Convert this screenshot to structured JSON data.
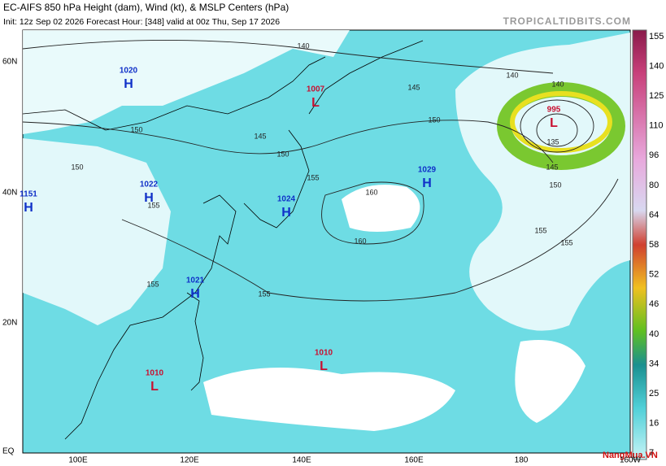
{
  "header": {
    "title": "EC-AIFS 850 hPa Height (dam), Wind (kt), & MSLP Centers (hPa)",
    "subtitle": "Init: 12z Sep 02 2026   Forecast Hour: [348]   valid at 00z Thu, Sep 17 2026",
    "site": "TROPICALTIDBITS.COM"
  },
  "lat_labels": [
    "60N",
    "40N",
    "20N",
    "EQ"
  ],
  "lon_labels": [
    "100E",
    "120E",
    "140E",
    "160E",
    "180",
    "160W"
  ],
  "centers": [
    {
      "type": "H",
      "value": "1020"
    },
    {
      "type": "H",
      "value": "1151"
    },
    {
      "type": "L",
      "value": "1007"
    },
    {
      "type": "L",
      "value": "995"
    },
    {
      "type": "H",
      "value": "1022"
    },
    {
      "type": "H",
      "value": "1024"
    },
    {
      "type": "H",
      "value": "1029"
    },
    {
      "type": "H",
      "value": "1021"
    },
    {
      "type": "L",
      "value": "1010"
    },
    {
      "type": "L",
      "value": "1010"
    }
  ],
  "contour_labels": [
    "140",
    "140",
    "140",
    "150",
    "150",
    "150",
    "150",
    "145",
    "145",
    "155",
    "160",
    "160",
    "155",
    "155",
    "155",
    "155",
    "135",
    "145",
    "150",
    "155"
  ],
  "colorbar": {
    "ticks": [
      "155",
      "140",
      "125",
      "110",
      "96",
      "80",
      "64",
      "58",
      "52",
      "46",
      "40",
      "34",
      "25",
      "16",
      "7"
    ]
  },
  "watermark": "NangMua.VN"
}
